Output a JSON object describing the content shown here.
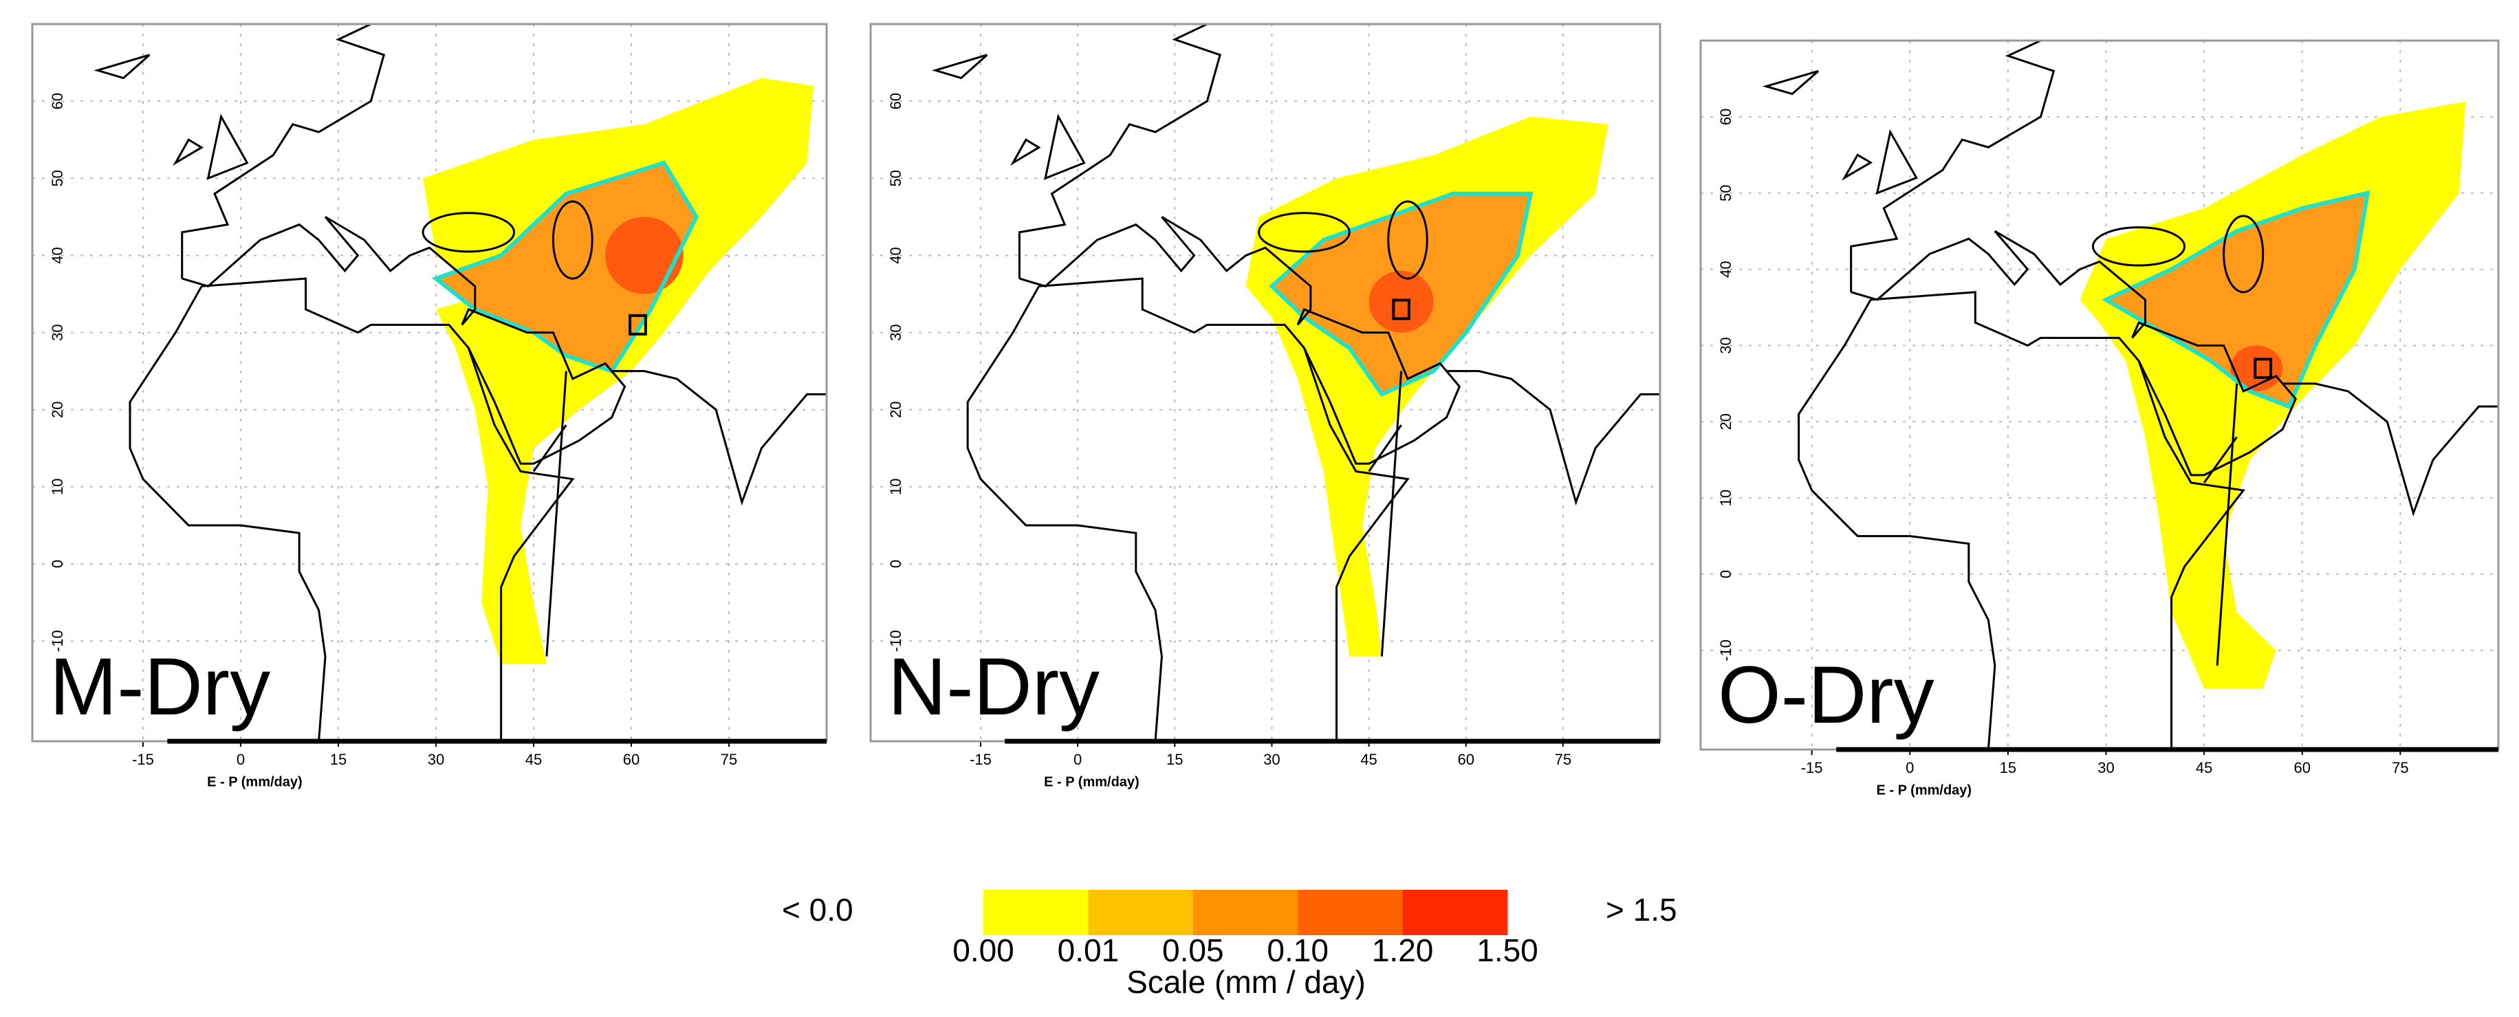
{
  "panels": [
    {
      "label": "M-Dry",
      "x_axis_label": "E - P (mm/day)",
      "xlim": [
        -32,
        90
      ],
      "ylim": [
        -23,
        70
      ],
      "xticks": [
        -15,
        0,
        15,
        30,
        45,
        60,
        75
      ],
      "yticks": [
        -10,
        0,
        10,
        20,
        30,
        40,
        50,
        60
      ]
    },
    {
      "label": "N-Dry",
      "x_axis_label": "E - P (mm/day)",
      "xlim": [
        -32,
        90
      ],
      "ylim": [
        -23,
        70
      ],
      "xticks": [
        -15,
        0,
        15,
        30,
        45,
        60,
        75
      ],
      "yticks": [
        -10,
        0,
        10,
        20,
        30,
        40,
        50,
        60
      ]
    },
    {
      "label": "O-Dry",
      "x_axis_label": "E - P (mm/day)",
      "xlim": [
        -32,
        90
      ],
      "ylim": [
        -23,
        70
      ],
      "xticks": [
        -15,
        0,
        15,
        30,
        45,
        60,
        75
      ],
      "yticks": [
        -10,
        0,
        10,
        20,
        30,
        40,
        50,
        60
      ]
    }
  ],
  "colorbar": {
    "under_label": "< 0.0",
    "over_label": "> 1.5",
    "colors": [
      "#ffff00",
      "#ffc200",
      "#ff9200",
      "#ff6200",
      "#ff2a00"
    ],
    "tick_labels": [
      "0.00",
      "0.01",
      "0.05",
      "0.10",
      "1.20",
      "1.50"
    ],
    "title": "Scale (mm / day)"
  }
}
